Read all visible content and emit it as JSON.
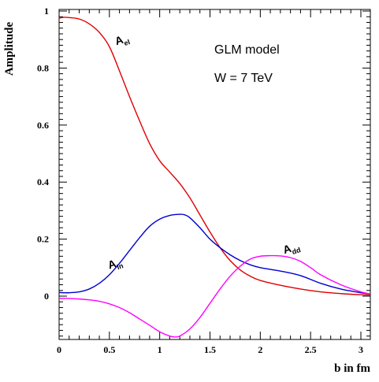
{
  "chart_data": {
    "type": "line",
    "title": "",
    "xlabel": "b in fm",
    "ylabel": "Amplitude",
    "xlim": [
      0,
      3.1
    ],
    "ylim": [
      -0.15,
      1.0
    ],
    "xticks": [
      {
        "value": 0,
        "label": "0"
      },
      {
        "value": 0.5,
        "label": "0.5"
      },
      {
        "value": 1,
        "label": "1"
      },
      {
        "value": 1.5,
        "label": "1.5"
      },
      {
        "value": 2,
        "label": "2"
      },
      {
        "value": 2.5,
        "label": "2.5"
      },
      {
        "value": 3,
        "label": "3"
      }
    ],
    "yticks": [
      {
        "value": 0,
        "label": "0"
      },
      {
        "value": 0.2,
        "label": "0.2"
      },
      {
        "value": 0.4,
        "label": "0.4"
      },
      {
        "value": 0.6,
        "label": "0.6"
      },
      {
        "value": 0.8,
        "label": "0.8"
      },
      {
        "value": 1,
        "label": "1"
      }
    ],
    "annotations": [
      "GLM model",
      "W = 7 TeV"
    ],
    "series": [
      {
        "name": "A_el",
        "label_main": "A",
        "label_sub": "el",
        "color": "#e00000",
        "label_at": [
          0.57,
          0.88
        ],
        "x": [
          0,
          0.05,
          0.1,
          0.2,
          0.3,
          0.4,
          0.5,
          0.6,
          0.7,
          0.8,
          0.9,
          1.0,
          1.1,
          1.2,
          1.3,
          1.4,
          1.5,
          1.6,
          1.7,
          1.8,
          1.9,
          2.0,
          2.2,
          2.4,
          2.6,
          2.8,
          3.0,
          3.1
        ],
        "y": [
          0.975,
          0.978,
          0.977,
          0.972,
          0.955,
          0.925,
          0.875,
          0.79,
          0.7,
          0.615,
          0.535,
          0.475,
          0.435,
          0.395,
          0.345,
          0.285,
          0.225,
          0.17,
          0.125,
          0.092,
          0.07,
          0.055,
          0.038,
          0.025,
          0.015,
          0.009,
          0.005,
          0.004
        ]
      },
      {
        "name": "A_in",
        "label_main": "A",
        "label_sub": "in",
        "color": "#0000d0",
        "label_at": [
          0.5,
          0.095
        ],
        "x": [
          0,
          0.05,
          0.1,
          0.2,
          0.3,
          0.4,
          0.5,
          0.6,
          0.7,
          0.8,
          0.9,
          1.0,
          1.1,
          1.2,
          1.25,
          1.3,
          1.4,
          1.5,
          1.6,
          1.7,
          1.8,
          1.9,
          2.0,
          2.2,
          2.4,
          2.6,
          2.8,
          3.0,
          3.1
        ],
        "y": [
          0.013,
          0.012,
          0.012,
          0.015,
          0.025,
          0.045,
          0.075,
          0.115,
          0.16,
          0.205,
          0.245,
          0.27,
          0.283,
          0.287,
          0.285,
          0.275,
          0.24,
          0.2,
          0.17,
          0.145,
          0.125,
          0.11,
          0.1,
          0.088,
          0.072,
          0.045,
          0.025,
          0.012,
          0.008
        ]
      },
      {
        "name": "A_dd",
        "label_main": "A",
        "label_sub": "dd",
        "color": "#ff00ff",
        "label_at": [
          2.24,
          0.148
        ],
        "x": [
          0,
          0.1,
          0.2,
          0.3,
          0.4,
          0.5,
          0.6,
          0.7,
          0.8,
          0.9,
          1.0,
          1.1,
          1.15,
          1.2,
          1.3,
          1.4,
          1.5,
          1.6,
          1.7,
          1.8,
          1.9,
          2.0,
          2.1,
          2.2,
          2.3,
          2.4,
          2.5,
          2.6,
          2.8,
          3.0,
          3.1
        ],
        "y": [
          -0.008,
          -0.008,
          -0.01,
          -0.013,
          -0.018,
          -0.027,
          -0.04,
          -0.058,
          -0.08,
          -0.102,
          -0.125,
          -0.14,
          -0.143,
          -0.14,
          -0.115,
          -0.075,
          -0.025,
          0.025,
          0.07,
          0.105,
          0.13,
          0.14,
          0.142,
          0.141,
          0.135,
          0.122,
          0.1,
          0.075,
          0.04,
          0.015,
          0.008
        ]
      }
    ]
  }
}
